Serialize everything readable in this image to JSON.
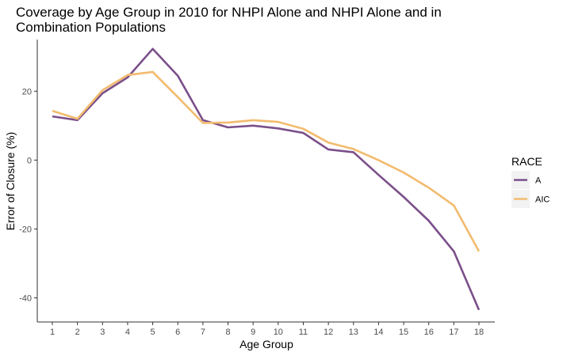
{
  "chart_data": {
    "type": "line",
    "title_line1": "Coverage by Age Group in 2010 for NHPI Alone and NHPI Alone and in",
    "title_line2": "Combination Populations",
    "xlabel": "Age Group",
    "ylabel": "Error of Closure (%)",
    "x": [
      1,
      2,
      3,
      4,
      5,
      6,
      7,
      8,
      9,
      10,
      11,
      12,
      13,
      14,
      15,
      16,
      17,
      18
    ],
    "xlim": [
      1,
      18
    ],
    "ylim": [
      -47,
      35
    ],
    "yticks": [
      20,
      0,
      -20,
      -40
    ],
    "ytick_labels": [
      "20",
      "0",
      "-20",
      "-40"
    ],
    "grid": false,
    "legend": {
      "title": "RACE",
      "position": "right"
    },
    "series": [
      {
        "name": "A",
        "color": "#7b4f8a",
        "values": [
          12.7,
          11.6,
          19.4,
          24.0,
          32.3,
          24.5,
          11.6,
          9.5,
          10.0,
          9.2,
          7.9,
          3.1,
          2.3,
          -4.3,
          -10.7,
          -17.6,
          -26.5,
          -43.5
        ]
      },
      {
        "name": "AIC",
        "color": "#f2bb6e",
        "values": [
          14.3,
          12.0,
          20.3,
          24.7,
          25.6,
          18.3,
          10.8,
          10.9,
          11.6,
          11.1,
          9.1,
          5.1,
          3.2,
          0.0,
          -3.6,
          -8.0,
          -13.2,
          -26.5
        ]
      }
    ]
  }
}
